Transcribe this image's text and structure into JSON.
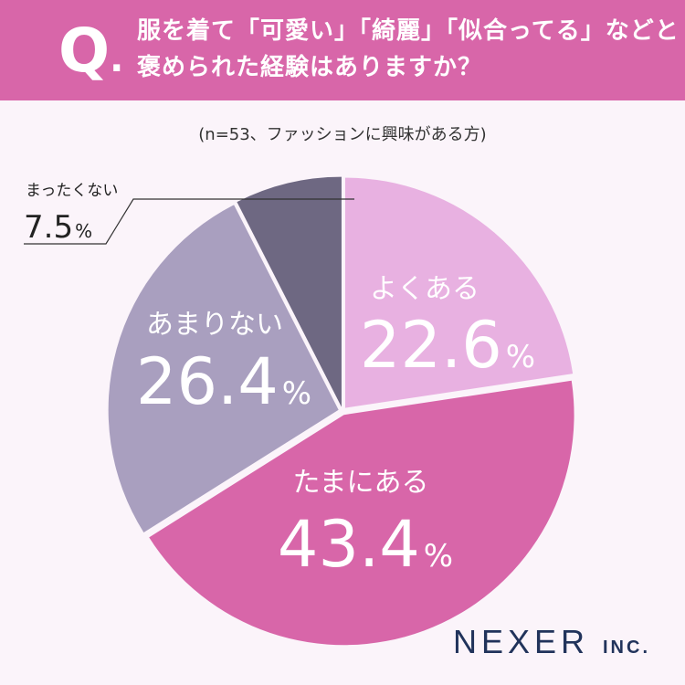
{
  "question": {
    "mark": "Q",
    "mark_dot": ".",
    "line1": "服を着て「可愛い」「綺麗」「似合ってる」などと",
    "line2": "褒められた経験はありますか？"
  },
  "sample_note": "(n=53、ファッションに興味がある方)",
  "brand": {
    "name": "NEXER",
    "suffix": "INC."
  },
  "colors": {
    "header": "#d866a9",
    "yokuaru": "#e8b1e1",
    "tamaniaru": "#d866a9",
    "amarinai": "#a99fbf",
    "mattakunai": "#6e6882"
  },
  "chart_data": {
    "type": "pie",
    "start": "12 o'clock",
    "direction": "clockwise",
    "unit": "%",
    "slices": [
      {
        "label": "よくある",
        "value": 22.6,
        "display": "22.6"
      },
      {
        "label": "たまにある",
        "value": 43.4,
        "display": "43.4"
      },
      {
        "label": "あまりない",
        "value": 26.4,
        "display": "26.4"
      },
      {
        "label": "まったくない",
        "value": 7.5,
        "display": "7.5"
      }
    ]
  }
}
